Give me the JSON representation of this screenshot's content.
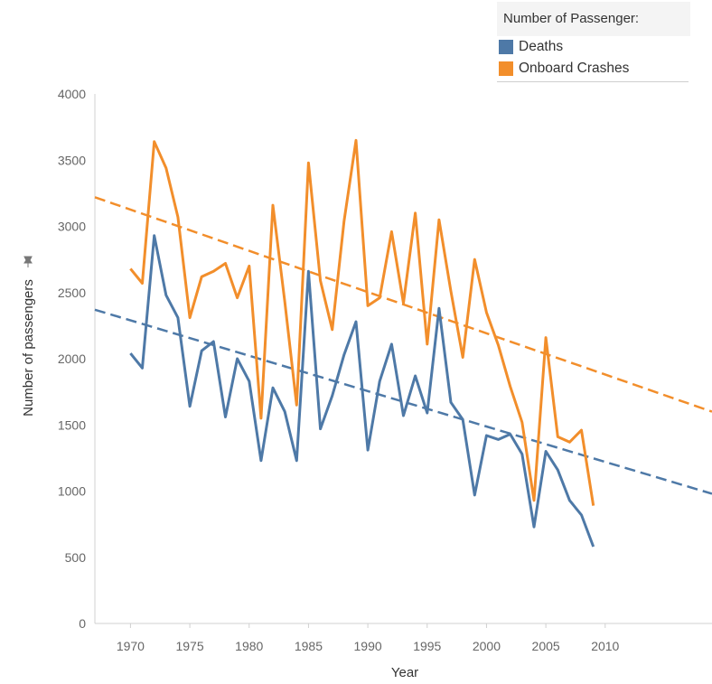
{
  "legend": {
    "title": "Number of Passenger:",
    "items": [
      {
        "label": "Deaths",
        "color": "#4e79a7"
      },
      {
        "label": "Onboard Crashes",
        "color": "#f28e2b"
      }
    ]
  },
  "chart_data": {
    "type": "line",
    "title": "",
    "xlabel": "Year",
    "ylabel": "Number of passengers",
    "xlim": [
      1967,
      2019
    ],
    "ylim": [
      0,
      4000
    ],
    "x_ticks": [
      1970,
      1975,
      1980,
      1985,
      1990,
      1995,
      2000,
      2005,
      2010
    ],
    "y_ticks": [
      0,
      500,
      1000,
      1500,
      2000,
      2500,
      3000,
      3500,
      4000
    ],
    "grid": false,
    "legend_position": "top-right",
    "x": [
      1970,
      1971,
      1972,
      1973,
      1974,
      1975,
      1976,
      1977,
      1978,
      1979,
      1980,
      1981,
      1982,
      1983,
      1984,
      1985,
      1986,
      1987,
      1988,
      1989,
      1990,
      1991,
      1992,
      1993,
      1994,
      1995,
      1996,
      1997,
      1998,
      1999,
      2000,
      2001,
      2002,
      2003,
      2004,
      2005,
      2006,
      2007,
      2008,
      2009
    ],
    "series": [
      {
        "name": "Deaths",
        "color": "#4e79a7",
        "values": [
          2040,
          1930,
          2930,
          2480,
          2310,
          1640,
          2060,
          2130,
          1560,
          2000,
          1830,
          1230,
          1780,
          1600,
          1230,
          2660,
          1470,
          1720,
          2030,
          2280,
          1310,
          1830,
          2110,
          1570,
          1870,
          1590,
          2380,
          1670,
          1540,
          970,
          1420,
          1390,
          1430,
          1280,
          730,
          1300,
          1160,
          930,
          820,
          580
        ],
        "trend": {
          "start": [
            1967,
            2370
          ],
          "end": [
            2019,
            980
          ]
        }
      },
      {
        "name": "Onboard Crashes",
        "color": "#f28e2b",
        "values": [
          2680,
          2570,
          3640,
          3440,
          3070,
          2310,
          2620,
          2660,
          2720,
          2460,
          2700,
          1550,
          3160,
          2430,
          1650,
          3480,
          2590,
          2220,
          3040,
          3650,
          2400,
          2460,
          2960,
          2420,
          3100,
          2110,
          3050,
          2510,
          2010,
          2750,
          2350,
          2100,
          1790,
          1520,
          930,
          2160,
          1410,
          1370,
          1460,
          890
        ],
        "trend": {
          "start": [
            1967,
            3220
          ],
          "end": [
            2019,
            1600
          ]
        }
      }
    ]
  }
}
